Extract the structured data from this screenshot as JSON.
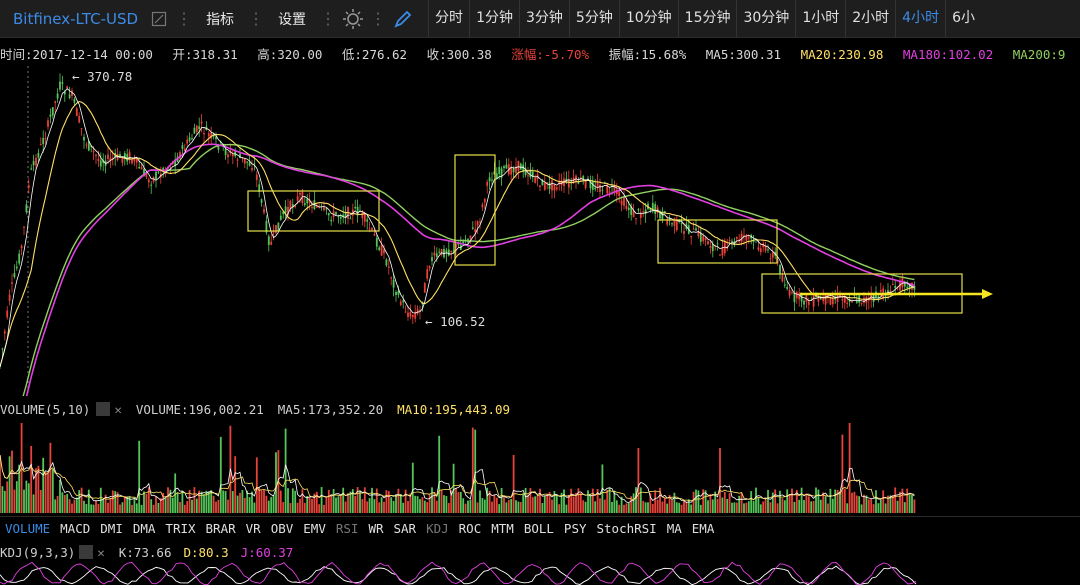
{
  "toolbar": {
    "symbol": "Bitfinex-LTC-USD",
    "indicator_label": "指标",
    "settings_label": "设置",
    "intervals": [
      "分时",
      "1分钟",
      "3分钟",
      "5分钟",
      "10分钟",
      "15分钟",
      "30分钟",
      "1小时",
      "2小时",
      "4小时",
      "6小"
    ],
    "active_interval": "4小时"
  },
  "info": {
    "time": "时间:2017-12-14 00:00",
    "open": "开:318.31",
    "high": "高:320.00",
    "low": "低:276.62",
    "close": "收:300.38",
    "change": "涨幅:-5.70%",
    "amplitude": "振幅:15.68%",
    "ma5": "MA5:300.31",
    "ma20": "MA20:230.98",
    "ma180": "MA180:102.02",
    "ma200": "MA200:9"
  },
  "chart": {
    "high_label": "370.78",
    "low_label": "106.52"
  },
  "volume": {
    "name": "VOLUME(5,10)",
    "value": "VOLUME:196,002.21",
    "ma5": "MA5:173,352.20",
    "ma10": "MA10:195,443.09"
  },
  "indicator_tabs": [
    "VOLUME",
    "MACD",
    "DMI",
    "DMA",
    "TRIX",
    "BRAR",
    "VR",
    "OBV",
    "EMV",
    "RSI",
    "WR",
    "SAR",
    "KDJ",
    "ROC",
    "MTM",
    "BOLL",
    "PSY",
    "StochRSI",
    "MA",
    "EMA"
  ],
  "kdj": {
    "name": "KDJ(9,3,3)",
    "k": "K:73.66",
    "d": "D:80.3",
    "j": "J:60.37"
  },
  "colors": {
    "up": "#e8433a",
    "down": "#55c55a",
    "ma5": "#ffffff",
    "ma20": "#ffe066",
    "ma180": "#e040e0",
    "ma200": "#90d060",
    "highlight": "#e6e04a",
    "active": "#3b8be6"
  }
}
